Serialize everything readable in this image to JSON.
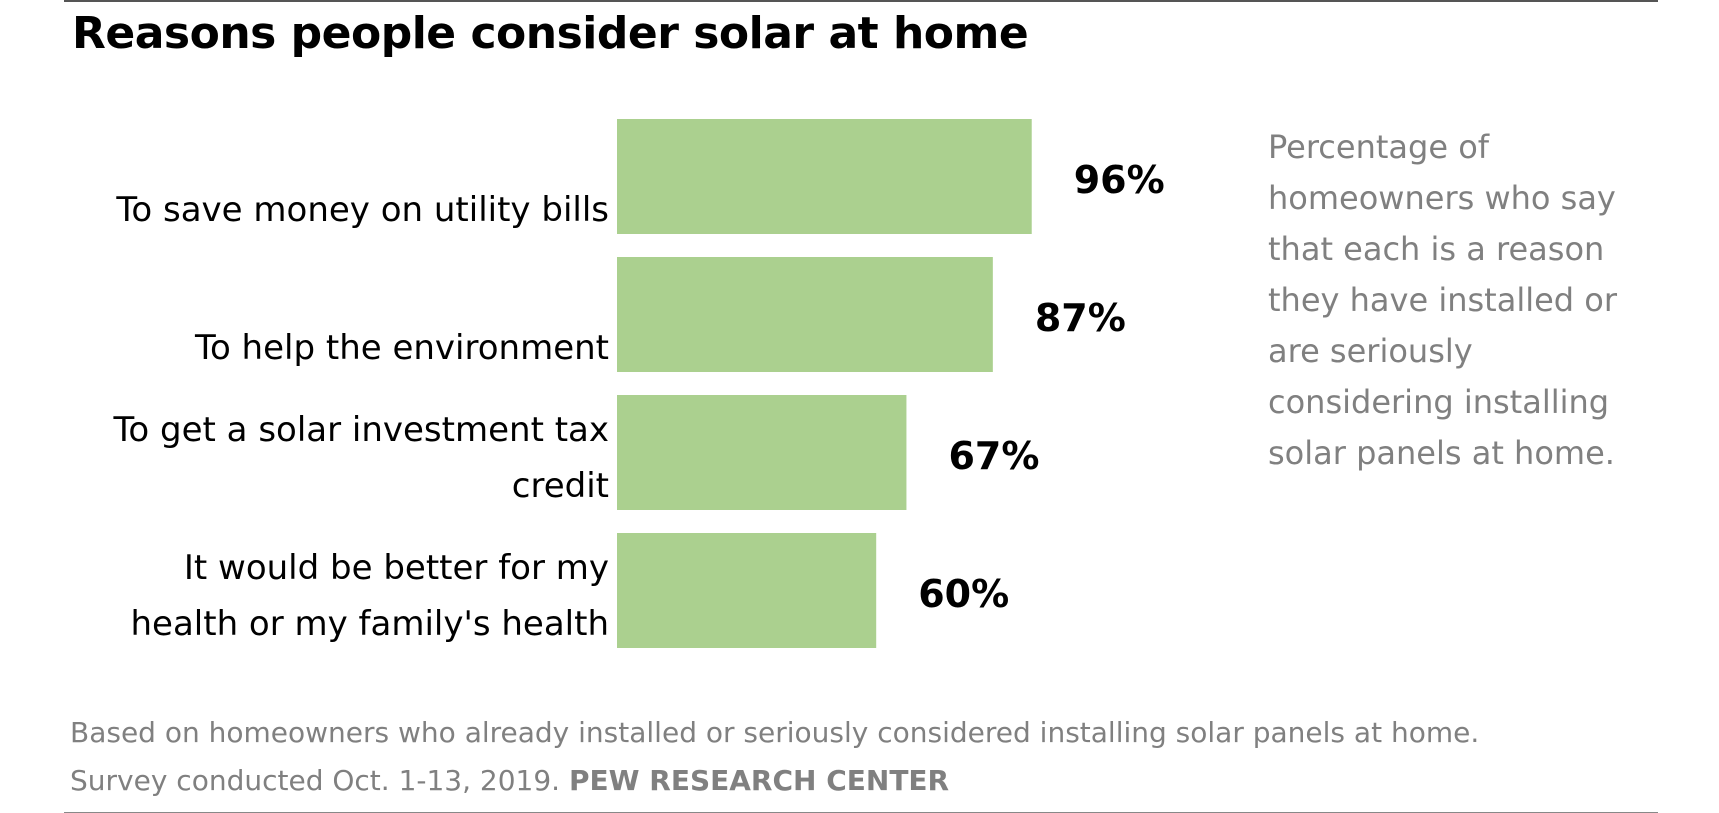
{
  "chart_data": {
    "type": "bar",
    "orientation": "horizontal",
    "title": "Reasons people consider solar at home",
    "categories": [
      [
        "To save money on utility bills"
      ],
      [
        "To help the environment"
      ],
      [
        "To get a solar investment tax",
        "credit"
      ],
      [
        "It would be better for my",
        "health or my family's health"
      ]
    ],
    "values": [
      96,
      87,
      67,
      60
    ],
    "value_labels": [
      "96%",
      "87%",
      "67%",
      "60%"
    ],
    "xlim": [
      0,
      100
    ],
    "grid": false,
    "legend": "none",
    "bar_color": "#abd08f",
    "note": "Percentage of homeowners who say that each is a reason they have installed or are seriously considering installing solar panels at home."
  },
  "footer": {
    "line1": "Based on homeowners who already installed or seriously considered installing solar panels at home.",
    "line2_prefix": "Survey conducted Oct. 1-13, 2019. ",
    "source": "PEW RESEARCH CENTER"
  }
}
